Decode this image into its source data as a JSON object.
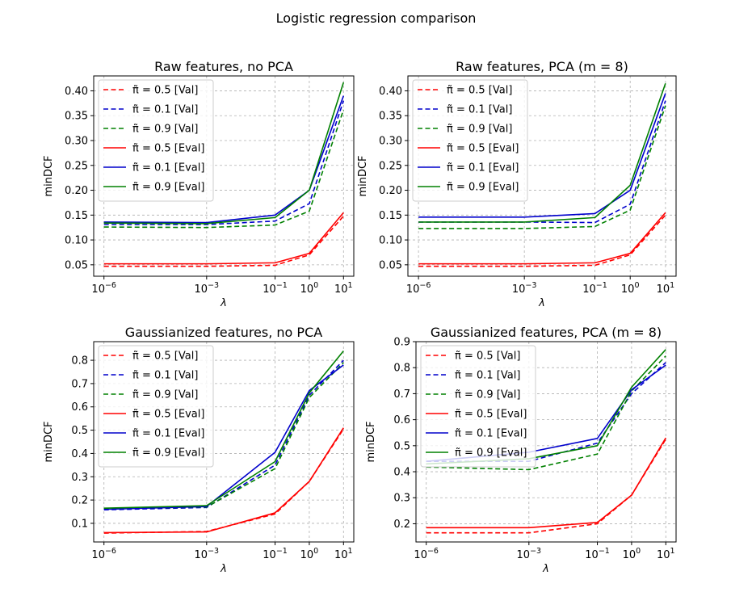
{
  "figure": {
    "suptitle": "Logistic regression comparison"
  },
  "colors": {
    "red": "#ff0000",
    "blue": "#0000cc",
    "green": "#008000"
  },
  "chart_data": [
    {
      "type": "line",
      "title": "Raw features, no PCA",
      "xlabel": "λ",
      "ylabel": "minDCF",
      "xscale": "log",
      "x": [
        1e-06,
        0.001,
        0.1,
        1,
        10
      ],
      "xticks": [
        {
          "base": "10",
          "exp": "−6",
          "value": 1e-06
        },
        {
          "base": "10",
          "exp": "−3",
          "value": 0.001
        },
        {
          "base": "10",
          "exp": "−1",
          "value": 0.1
        },
        {
          "base": "10",
          "exp": "0",
          "value": 1
        },
        {
          "base": "10",
          "exp": "1",
          "value": 10
        }
      ],
      "ylim": [
        0.027,
        0.43
      ],
      "yticks": [
        0.05,
        0.1,
        0.15,
        0.2,
        0.25,
        0.3,
        0.35,
        0.4
      ],
      "ytick_labels": [
        "0.05",
        "0.10",
        "0.15",
        "0.20",
        "0.25",
        "0.30",
        "0.35",
        "0.40"
      ],
      "grid": true,
      "legend_position": "upper-left",
      "series": [
        {
          "name": "π̃ = 0.5 [Val]",
          "color": "red",
          "dash": true,
          "values": [
            0.047,
            0.047,
            0.049,
            0.07,
            0.148
          ]
        },
        {
          "name": "π̃ = 0.1 [Val]",
          "color": "blue",
          "dash": true,
          "values": [
            0.131,
            0.131,
            0.138,
            0.173,
            0.38
          ]
        },
        {
          "name": "π̃ = 0.9 [Val]",
          "color": "green",
          "dash": true,
          "values": [
            0.126,
            0.125,
            0.13,
            0.158,
            0.362
          ]
        },
        {
          "name": "π̃ = 0.5 [Eval]",
          "color": "red",
          "dash": false,
          "values": [
            0.052,
            0.052,
            0.054,
            0.073,
            0.155
          ]
        },
        {
          "name": "π̃ = 0.1 [Eval]",
          "color": "blue",
          "dash": false,
          "values": [
            0.136,
            0.135,
            0.15,
            0.2,
            0.39
          ]
        },
        {
          "name": "π̃ = 0.9 [Eval]",
          "color": "green",
          "dash": false,
          "values": [
            0.134,
            0.133,
            0.145,
            0.2,
            0.417
          ]
        }
      ]
    },
    {
      "type": "line",
      "title": "Raw features, PCA (m = 8)",
      "xlabel": "λ",
      "ylabel": "minDCF",
      "xscale": "log",
      "x": [
        1e-06,
        0.001,
        0.1,
        1,
        10
      ],
      "xticks": [
        {
          "base": "10",
          "exp": "−6",
          "value": 1e-06
        },
        {
          "base": "10",
          "exp": "−3",
          "value": 0.001
        },
        {
          "base": "10",
          "exp": "−1",
          "value": 0.1
        },
        {
          "base": "10",
          "exp": "0",
          "value": 1
        },
        {
          "base": "10",
          "exp": "1",
          "value": 10
        }
      ],
      "ylim": [
        0.027,
        0.43
      ],
      "yticks": [
        0.05,
        0.1,
        0.15,
        0.2,
        0.25,
        0.3,
        0.35,
        0.4
      ],
      "ytick_labels": [
        "0.05",
        "0.10",
        "0.15",
        "0.20",
        "0.25",
        "0.30",
        "0.35",
        "0.40"
      ],
      "grid": true,
      "legend_position": "upper-left",
      "series": [
        {
          "name": "π̃ = 0.5 [Val]",
          "color": "red",
          "dash": true,
          "values": [
            0.047,
            0.047,
            0.049,
            0.07,
            0.15
          ]
        },
        {
          "name": "π̃ = 0.1 [Val]",
          "color": "blue",
          "dash": true,
          "values": [
            0.136,
            0.136,
            0.135,
            0.172,
            0.38
          ]
        },
        {
          "name": "π̃ = 0.9 [Val]",
          "color": "green",
          "dash": true,
          "values": [
            0.123,
            0.123,
            0.127,
            0.16,
            0.37
          ]
        },
        {
          "name": "π̃ = 0.5 [Eval]",
          "color": "red",
          "dash": false,
          "values": [
            0.052,
            0.052,
            0.054,
            0.073,
            0.155
          ]
        },
        {
          "name": "π̃ = 0.1 [Eval]",
          "color": "blue",
          "dash": false,
          "values": [
            0.146,
            0.146,
            0.153,
            0.2,
            0.395
          ]
        },
        {
          "name": "π̃ = 0.9 [Eval]",
          "color": "green",
          "dash": false,
          "values": [
            0.136,
            0.136,
            0.145,
            0.21,
            0.415
          ]
        }
      ]
    },
    {
      "type": "line",
      "title": "Gaussianized features, no PCA",
      "xlabel": "λ",
      "ylabel": "minDCF",
      "xscale": "log",
      "x": [
        1e-06,
        0.001,
        0.1,
        1,
        10
      ],
      "xticks": [
        {
          "base": "10",
          "exp": "−6",
          "value": 1e-06
        },
        {
          "base": "10",
          "exp": "−3",
          "value": 0.001
        },
        {
          "base": "10",
          "exp": "−1",
          "value": 0.1
        },
        {
          "base": "10",
          "exp": "0",
          "value": 1
        },
        {
          "base": "10",
          "exp": "1",
          "value": 10
        }
      ],
      "ylim": [
        0.02,
        0.88
      ],
      "yticks": [
        0.1,
        0.2,
        0.3,
        0.4,
        0.5,
        0.6,
        0.7,
        0.8
      ],
      "ytick_labels": [
        "0.1",
        "0.2",
        "0.3",
        "0.4",
        "0.5",
        "0.6",
        "0.7",
        "0.8"
      ],
      "grid": true,
      "legend_position": "upper-left",
      "series": [
        {
          "name": "π̃ = 0.5 [Val]",
          "color": "red",
          "dash": true,
          "values": [
            0.058,
            0.065,
            0.14,
            0.28,
            0.505
          ]
        },
        {
          "name": "π̃ = 0.1 [Val]",
          "color": "blue",
          "dash": true,
          "values": [
            0.158,
            0.168,
            0.35,
            0.65,
            0.8
          ]
        },
        {
          "name": "π̃ = 0.9 [Val]",
          "color": "green",
          "dash": true,
          "values": [
            0.162,
            0.17,
            0.335,
            0.64,
            0.79
          ]
        },
        {
          "name": "π̃ = 0.5 [Eval]",
          "color": "red",
          "dash": false,
          "values": [
            0.06,
            0.063,
            0.145,
            0.28,
            0.51
          ]
        },
        {
          "name": "π̃ = 0.1 [Eval]",
          "color": "blue",
          "dash": false,
          "values": [
            0.16,
            0.172,
            0.405,
            0.67,
            0.78
          ]
        },
        {
          "name": "π̃ = 0.9 [Eval]",
          "color": "green",
          "dash": false,
          "values": [
            0.165,
            0.176,
            0.365,
            0.66,
            0.84
          ]
        }
      ]
    },
    {
      "type": "line",
      "title": "Gaussianized features, PCA (m = 8)",
      "xlabel": "λ",
      "ylabel": "minDCF",
      "xscale": "log",
      "x": [
        1e-06,
        0.001,
        0.1,
        1,
        10
      ],
      "xticks": [
        {
          "base": "10",
          "exp": "−6",
          "value": 1e-06
        },
        {
          "base": "10",
          "exp": "−3",
          "value": 0.001
        },
        {
          "base": "10",
          "exp": "−1",
          "value": 0.1
        },
        {
          "base": "10",
          "exp": "0",
          "value": 1
        },
        {
          "base": "10",
          "exp": "1",
          "value": 10
        }
      ],
      "ylim": [
        0.13,
        0.9
      ],
      "yticks": [
        0.2,
        0.3,
        0.4,
        0.5,
        0.6,
        0.7,
        0.8,
        0.9
      ],
      "ytick_labels": [
        "0.2",
        "0.3",
        "0.4",
        "0.5",
        "0.6",
        "0.7",
        "0.8",
        "0.9"
      ],
      "grid": true,
      "legend_position": "upper-left",
      "series": [
        {
          "name": "π̃ = 0.5 [Val]",
          "color": "red",
          "dash": true,
          "values": [
            0.165,
            0.165,
            0.2,
            0.31,
            0.525
          ]
        },
        {
          "name": "π̃ = 0.1 [Val]",
          "color": "blue",
          "dash": true,
          "values": [
            0.44,
            0.44,
            0.51,
            0.7,
            0.82
          ]
        },
        {
          "name": "π̃ = 0.9 [Val]",
          "color": "green",
          "dash": true,
          "values": [
            0.418,
            0.408,
            0.468,
            0.71,
            0.845
          ]
        },
        {
          "name": "π̃ = 0.5 [Eval]",
          "color": "red",
          "dash": false,
          "values": [
            0.185,
            0.185,
            0.205,
            0.31,
            0.53
          ]
        },
        {
          "name": "π̃ = 0.1 [Eval]",
          "color": "blue",
          "dash": false,
          "values": [
            0.44,
            0.475,
            0.528,
            0.715,
            0.81
          ]
        },
        {
          "name": "π̃ = 0.9 [Eval]",
          "color": "green",
          "dash": false,
          "values": [
            0.43,
            0.45,
            0.5,
            0.725,
            0.87
          ]
        }
      ]
    }
  ]
}
